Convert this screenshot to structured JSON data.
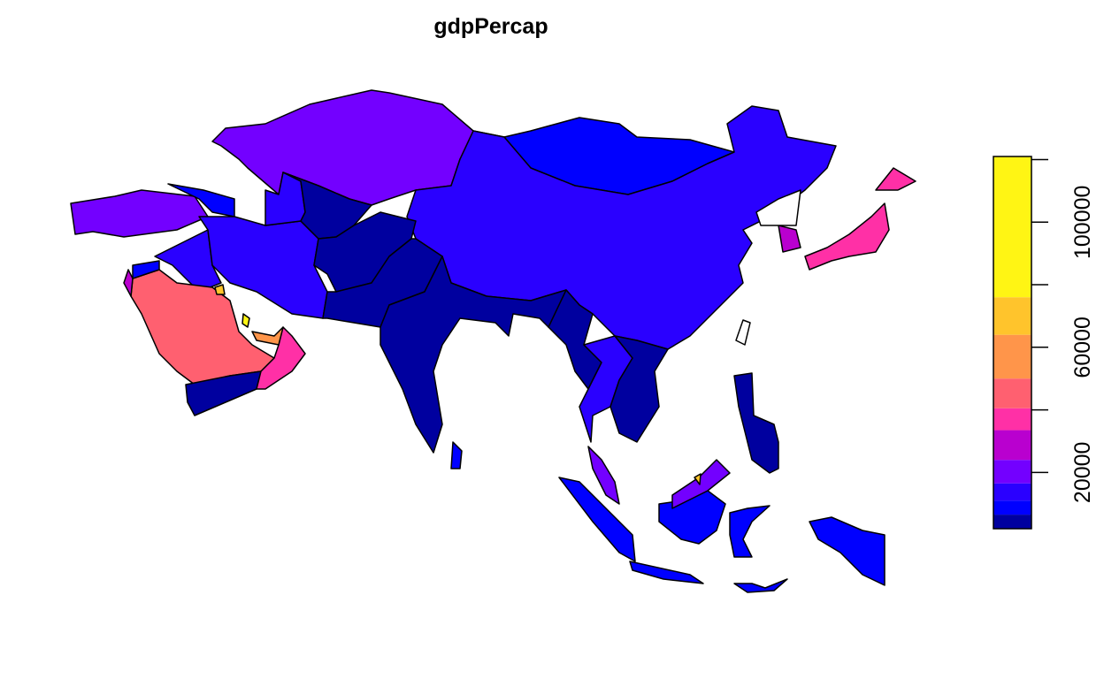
{
  "chart_data": {
    "type": "choropleth",
    "title": "gdpPercap",
    "values": [
      21000,
      9000,
      14000,
      28000,
      null,
      37000,
      37000,
      null,
      22000,
      9000,
      14000,
      14000,
      16000,
      5000,
      2300,
      4000,
      3500,
      4000,
      13000,
      5000,
      22000,
      10000,
      45000,
      3000,
      38000,
      60000,
      100000,
      70000,
      30000,
      8000,
      9000,
      9000,
      9000,
      22000,
      70000,
      9000,
      9000,
      9000,
      5000
    ],
    "legend": {
      "breaks": [
        2000,
        6500,
        11000,
        16500,
        24000,
        33500,
        40500,
        50000,
        64000,
        76000,
        121000
      ],
      "colors": [
        "#00009F",
        "#0000FF",
        "#2A00FF",
        "#7300FF",
        "#B900CF",
        "#FF30A6",
        "#FF6070",
        "#FF954A",
        "#FFC42C",
        "#FFF514"
      ],
      "ticks": [
        20000,
        {
          "value": 40000,
          "label": null
        },
        60000,
        {
          "value": 80000,
          "label": null
        },
        100000,
        {
          "value": 120000,
          "label": null
        }
      ]
    }
  }
}
